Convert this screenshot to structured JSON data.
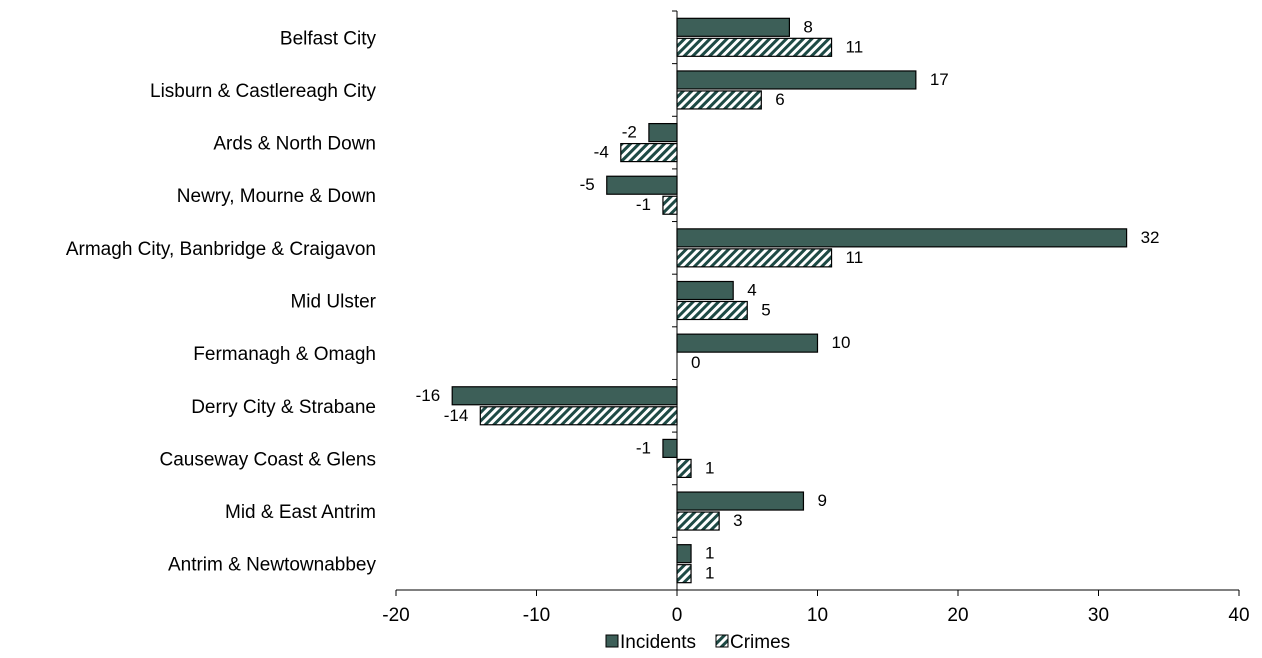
{
  "chart_data": {
    "type": "bar",
    "orientation": "horizontal",
    "categories": [
      "Belfast City",
      "Lisburn & Castlereagh City",
      "Ards & North Down",
      "Newry, Mourne & Down",
      "Armagh City, Banbridge & Craigavon",
      "Mid Ulster",
      "Fermanagh & Omagh",
      "Derry City & Strabane",
      "Causeway Coast & Glens",
      "Mid & East Antrim",
      "Antrim & Newtownabbey"
    ],
    "series": [
      {
        "name": "Incidents",
        "values": [
          8,
          17,
          -2,
          -5,
          32,
          4,
          10,
          -16,
          -1,
          9,
          1
        ],
        "color": "#3d5f58",
        "fill": "solid"
      },
      {
        "name": "Crimes",
        "values": [
          11,
          6,
          -4,
          -1,
          11,
          5,
          0,
          -14,
          1,
          3,
          1
        ],
        "color": "#1e4a45",
        "fill": "diagonal-hatch"
      }
    ],
    "xlim": [
      -20,
      40
    ],
    "xticks": [
      -20,
      -10,
      0,
      10,
      20,
      30,
      40
    ],
    "title": "",
    "xlabel": "",
    "ylabel": "",
    "grid": false,
    "legend_position": "bottom"
  }
}
